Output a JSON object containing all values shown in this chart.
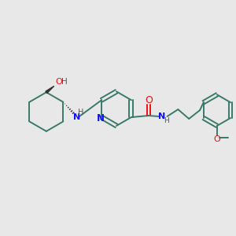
{
  "background_color": "#e8e8e8",
  "bond_color": "#3a7a6a",
  "N_color": "#1010ff",
  "O_color": "#ee1111",
  "lw": 1.4,
  "fs": 8.0,
  "figsize": [
    3.0,
    3.0
  ],
  "dpi": 100,
  "xlim": [
    0,
    300
  ],
  "ylim": [
    0,
    300
  ]
}
